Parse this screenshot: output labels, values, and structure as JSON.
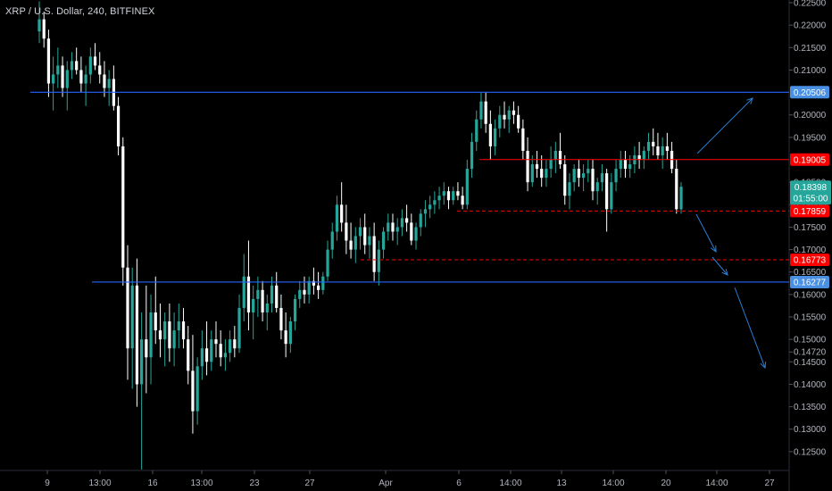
{
  "header": {
    "symbol_title": "XRP / U.S. Dollar, 240, BITFINEX"
  },
  "colors": {
    "background": "#000000",
    "candle_up": "#26a69a",
    "candle_down": "#ffffff",
    "support_resistance_line": "#2962ff",
    "resistance_label_bg": "#4a90e2",
    "red_level": "#ff0000",
    "last_price_bg": "#26a69a",
    "arrow": "#2a7fd4"
  },
  "chart_data": {
    "type": "candlestick",
    "title": "XRP / U.S. Dollar, 240, BITFINEX",
    "ylim": [
      0.1208,
      0.2256
    ],
    "y_tick_labels": [
      "0.12500",
      "0.13000",
      "0.13500",
      "0.14000",
      "0.14500",
      "0.14720",
      "0.15000",
      "0.15500",
      "0.16000",
      "0.16500",
      "0.17000",
      "0.17500",
      "0.18000",
      "0.18500",
      "0.19500",
      "0.20000",
      "0.21000",
      "0.21500",
      "0.22000",
      "0.22500"
    ],
    "x_tick_labels": [
      "9",
      "13:00",
      "16",
      "13:00",
      "23",
      "27",
      "Apr",
      "6",
      "14:00",
      "13",
      "14:00",
      "20",
      "14:00",
      "27"
    ],
    "blue_levels": [
      {
        "price": 0.20506,
        "label": "0.20506"
      },
      {
        "price": 0.16277,
        "label": "0.16277"
      }
    ],
    "red_levels": [
      {
        "price": 0.19005,
        "label": "0.19005",
        "style": "solid"
      },
      {
        "price": 0.17859,
        "label": "0.17859",
        "style": "dashed"
      },
      {
        "price": 0.16773,
        "label": "0.16773",
        "style": "dashed"
      }
    ],
    "last_price": {
      "price": 0.18398,
      "label": "0.18398",
      "countdown": "01:55:00"
    },
    "candles": [
      [
        0.2186,
        0.2253,
        0.216,
        0.2213
      ],
      [
        0.2213,
        0.223,
        0.215,
        0.217
      ],
      [
        0.217,
        0.219,
        0.204,
        0.207
      ],
      [
        0.207,
        0.213,
        0.201,
        0.209
      ],
      [
        0.209,
        0.215,
        0.206,
        0.211
      ],
      [
        0.211,
        0.213,
        0.204,
        0.206
      ],
      [
        0.206,
        0.212,
        0.201,
        0.21
      ],
      [
        0.21,
        0.214,
        0.208,
        0.212
      ],
      [
        0.212,
        0.215,
        0.209,
        0.21
      ],
      [
        0.21,
        0.213,
        0.205,
        0.207
      ],
      [
        0.207,
        0.211,
        0.202,
        0.209
      ],
      [
        0.209,
        0.215,
        0.207,
        0.213
      ],
      [
        0.213,
        0.216,
        0.21,
        0.211
      ],
      [
        0.211,
        0.214,
        0.207,
        0.209
      ],
      [
        0.209,
        0.212,
        0.204,
        0.206
      ],
      [
        0.206,
        0.21,
        0.202,
        0.208
      ],
      [
        0.208,
        0.211,
        0.201,
        0.202
      ],
      [
        0.202,
        0.204,
        0.191,
        0.193
      ],
      [
        0.193,
        0.195,
        0.162,
        0.166
      ],
      [
        0.166,
        0.171,
        0.141,
        0.148
      ],
      [
        0.148,
        0.166,
        0.139,
        0.162
      ],
      [
        0.162,
        0.168,
        0.135,
        0.14
      ],
      [
        0.14,
        0.156,
        0.121,
        0.15
      ],
      [
        0.15,
        0.162,
        0.138,
        0.146
      ],
      [
        0.146,
        0.16,
        0.14,
        0.156
      ],
      [
        0.156,
        0.164,
        0.149,
        0.152
      ],
      [
        0.152,
        0.158,
        0.146,
        0.15
      ],
      [
        0.15,
        0.156,
        0.144,
        0.154
      ],
      [
        0.154,
        0.158,
        0.145,
        0.148
      ],
      [
        0.148,
        0.156,
        0.144,
        0.152
      ],
      [
        0.152,
        0.158,
        0.148,
        0.154
      ],
      [
        0.154,
        0.157,
        0.148,
        0.15
      ],
      [
        0.15,
        0.153,
        0.14,
        0.143
      ],
      [
        0.143,
        0.151,
        0.129,
        0.134
      ],
      [
        0.134,
        0.146,
        0.131,
        0.144
      ],
      [
        0.144,
        0.152,
        0.141,
        0.148
      ],
      [
        0.148,
        0.154,
        0.142,
        0.145
      ],
      [
        0.145,
        0.152,
        0.143,
        0.15
      ],
      [
        0.15,
        0.154,
        0.146,
        0.149
      ],
      [
        0.149,
        0.152,
        0.144,
        0.146
      ],
      [
        0.146,
        0.15,
        0.143,
        0.147
      ],
      [
        0.147,
        0.152,
        0.145,
        0.15
      ],
      [
        0.15,
        0.153,
        0.146,
        0.148
      ],
      [
        0.148,
        0.16,
        0.147,
        0.157
      ],
      [
        0.157,
        0.169,
        0.154,
        0.164
      ],
      [
        0.164,
        0.172,
        0.152,
        0.156
      ],
      [
        0.156,
        0.162,
        0.15,
        0.159
      ],
      [
        0.159,
        0.164,
        0.155,
        0.161
      ],
      [
        0.161,
        0.163,
        0.154,
        0.156
      ],
      [
        0.156,
        0.16,
        0.152,
        0.158
      ],
      [
        0.158,
        0.164,
        0.156,
        0.162
      ],
      [
        0.162,
        0.165,
        0.156,
        0.157
      ],
      [
        0.157,
        0.16,
        0.15,
        0.152
      ],
      [
        0.152,
        0.156,
        0.146,
        0.149
      ],
      [
        0.149,
        0.155,
        0.147,
        0.154
      ],
      [
        0.154,
        0.16,
        0.152,
        0.159
      ],
      [
        0.159,
        0.163,
        0.157,
        0.161
      ],
      [
        0.161,
        0.164,
        0.158,
        0.16
      ],
      [
        0.16,
        0.164,
        0.158,
        0.163
      ],
      [
        0.163,
        0.166,
        0.16,
        0.162
      ],
      [
        0.162,
        0.165,
        0.159,
        0.161
      ],
      [
        0.161,
        0.165,
        0.16,
        0.164
      ],
      [
        0.164,
        0.172,
        0.163,
        0.17
      ],
      [
        0.17,
        0.176,
        0.168,
        0.174
      ],
      [
        0.174,
        0.182,
        0.172,
        0.18
      ],
      [
        0.18,
        0.185,
        0.174,
        0.176
      ],
      [
        0.176,
        0.18,
        0.169,
        0.172
      ],
      [
        0.172,
        0.176,
        0.168,
        0.17
      ],
      [
        0.17,
        0.175,
        0.167,
        0.173
      ],
      [
        0.173,
        0.177,
        0.17,
        0.175
      ],
      [
        0.175,
        0.178,
        0.169,
        0.171
      ],
      [
        0.171,
        0.175,
        0.168,
        0.173
      ],
      [
        0.173,
        0.176,
        0.163,
        0.165
      ],
      [
        0.165,
        0.172,
        0.162,
        0.17
      ],
      [
        0.17,
        0.175,
        0.168,
        0.174
      ],
      [
        0.174,
        0.178,
        0.172,
        0.176
      ],
      [
        0.176,
        0.178,
        0.172,
        0.174
      ],
      [
        0.174,
        0.177,
        0.171,
        0.175
      ],
      [
        0.175,
        0.179,
        0.173,
        0.177
      ],
      [
        0.177,
        0.18,
        0.174,
        0.176
      ],
      [
        0.176,
        0.178,
        0.171,
        0.172
      ],
      [
        0.172,
        0.176,
        0.17,
        0.175
      ],
      [
        0.175,
        0.179,
        0.173,
        0.178
      ],
      [
        0.178,
        0.181,
        0.175,
        0.179
      ],
      [
        0.179,
        0.182,
        0.177,
        0.18
      ],
      [
        0.18,
        0.183,
        0.178,
        0.181
      ],
      [
        0.181,
        0.184,
        0.179,
        0.182
      ],
      [
        0.182,
        0.185,
        0.18,
        0.183
      ],
      [
        0.183,
        0.184,
        0.179,
        0.181
      ],
      [
        0.181,
        0.184,
        0.18,
        0.183
      ],
      [
        0.183,
        0.185,
        0.181,
        0.182
      ],
      [
        0.182,
        0.184,
        0.179,
        0.18
      ],
      [
        0.18,
        0.19,
        0.179,
        0.188
      ],
      [
        0.188,
        0.196,
        0.186,
        0.194
      ],
      [
        0.194,
        0.201,
        0.192,
        0.199
      ],
      [
        0.199,
        0.205,
        0.197,
        0.203
      ],
      [
        0.203,
        0.205,
        0.196,
        0.198
      ],
      [
        0.198,
        0.201,
        0.19,
        0.193
      ],
      [
        0.193,
        0.199,
        0.191,
        0.197
      ],
      [
        0.197,
        0.202,
        0.195,
        0.2
      ],
      [
        0.2,
        0.203,
        0.197,
        0.199
      ],
      [
        0.199,
        0.202,
        0.196,
        0.201
      ],
      [
        0.201,
        0.203,
        0.198,
        0.2
      ],
      [
        0.2,
        0.202,
        0.196,
        0.197
      ],
      [
        0.197,
        0.199,
        0.19,
        0.192
      ],
      [
        0.192,
        0.195,
        0.183,
        0.185
      ],
      [
        0.185,
        0.191,
        0.184,
        0.189
      ],
      [
        0.189,
        0.192,
        0.186,
        0.188
      ],
      [
        0.188,
        0.191,
        0.184,
        0.186
      ],
      [
        0.186,
        0.19,
        0.184,
        0.188
      ],
      [
        0.188,
        0.193,
        0.186,
        0.19
      ],
      [
        0.19,
        0.194,
        0.187,
        0.192
      ],
      [
        0.192,
        0.196,
        0.188,
        0.189
      ],
      [
        0.189,
        0.191,
        0.18,
        0.182
      ],
      [
        0.182,
        0.187,
        0.179,
        0.185
      ],
      [
        0.185,
        0.189,
        0.183,
        0.188
      ],
      [
        0.188,
        0.19,
        0.184,
        0.186
      ],
      [
        0.186,
        0.189,
        0.183,
        0.187
      ],
      [
        0.187,
        0.19,
        0.185,
        0.188
      ],
      [
        0.188,
        0.19,
        0.181,
        0.183
      ],
      [
        0.183,
        0.186,
        0.18,
        0.185
      ],
      [
        0.185,
        0.189,
        0.183,
        0.187
      ],
      [
        0.187,
        0.188,
        0.174,
        0.179
      ],
      [
        0.179,
        0.187,
        0.178,
        0.185
      ],
      [
        0.185,
        0.19,
        0.183,
        0.188
      ],
      [
        0.188,
        0.192,
        0.186,
        0.19
      ],
      [
        0.19,
        0.192,
        0.186,
        0.188
      ],
      [
        0.188,
        0.191,
        0.186,
        0.189
      ],
      [
        0.189,
        0.193,
        0.187,
        0.191
      ],
      [
        0.191,
        0.194,
        0.188,
        0.19
      ],
      [
        0.19,
        0.193,
        0.188,
        0.192
      ],
      [
        0.192,
        0.196,
        0.19,
        0.194
      ],
      [
        0.194,
        0.197,
        0.191,
        0.193
      ],
      [
        0.193,
        0.196,
        0.19,
        0.191
      ],
      [
        0.191,
        0.195,
        0.188,
        0.193
      ],
      [
        0.193,
        0.196,
        0.19,
        0.192
      ],
      [
        0.192,
        0.194,
        0.187,
        0.188
      ],
      [
        0.188,
        0.19,
        0.178,
        0.179
      ],
      [
        0.179,
        0.185,
        0.178,
        0.184
      ]
    ]
  },
  "annotations": {
    "arrows": [
      {
        "name": "arrow-up-target"
      },
      {
        "name": "arrow-down-1"
      },
      {
        "name": "arrow-down-2"
      },
      {
        "name": "arrow-down-3"
      }
    ]
  }
}
